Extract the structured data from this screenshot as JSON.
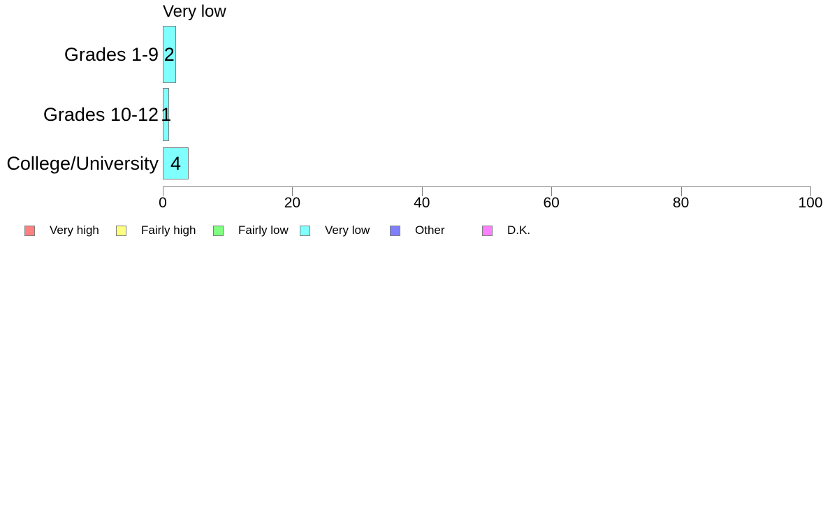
{
  "chart_data": {
    "type": "bar",
    "orientation": "horizontal",
    "title": "Very low",
    "categories": [
      "Grades 1-9",
      "Grades 10-12",
      "College/University"
    ],
    "values": [
      2,
      1,
      4
    ],
    "value_labels": [
      "2",
      "1",
      "4"
    ],
    "bar_color": "#80FFFF",
    "bar_border_color": "#808080",
    "axis_color": "#808080",
    "text_color": "#000000",
    "xlabel": "",
    "ylabel": "",
    "xlim": [
      0,
      100
    ],
    "xticks": [
      0,
      20,
      40,
      60,
      80,
      100
    ],
    "grid": false,
    "legend": {
      "position": "bottom-left",
      "items": [
        {
          "label": "Very high",
          "color": "#FF8080"
        },
        {
          "label": "Fairly high",
          "color": "#FFFF80"
        },
        {
          "label": "Fairly low",
          "color": "#80FF80"
        },
        {
          "label": "Very low",
          "color": "#80FFFF"
        },
        {
          "label": "Other",
          "color": "#8080FF"
        },
        {
          "label": "D.K.",
          "color": "#FF80FF"
        }
      ]
    }
  }
}
